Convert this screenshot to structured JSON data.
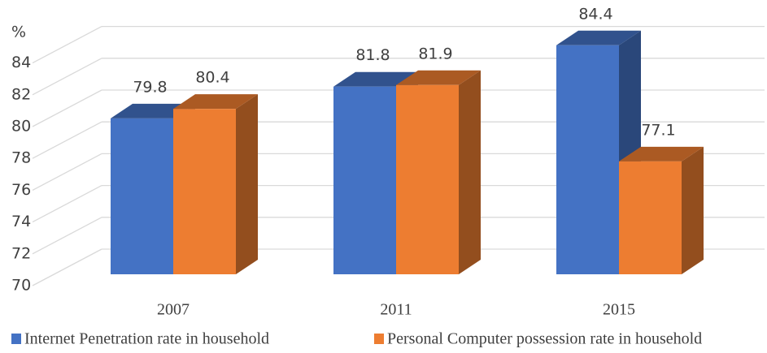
{
  "chart_data": {
    "type": "bar3d",
    "y_axis_label": "%",
    "categories": [
      "2007",
      "2011",
      "2015"
    ],
    "series": [
      {
        "name": "Internet Penetration rate in household",
        "color": "#4472c4",
        "values": [
          79.8,
          81.8,
          84.4
        ]
      },
      {
        "name": "Personal Computer possession rate in household",
        "color": "#ed7d31",
        "values": [
          80.4,
          81.9,
          77.1
        ]
      }
    ],
    "ylim": [
      70,
      86
    ],
    "yticks": [
      70,
      72,
      74,
      76,
      78,
      80,
      82,
      84
    ],
    "grid": true,
    "legend": "bottom"
  }
}
